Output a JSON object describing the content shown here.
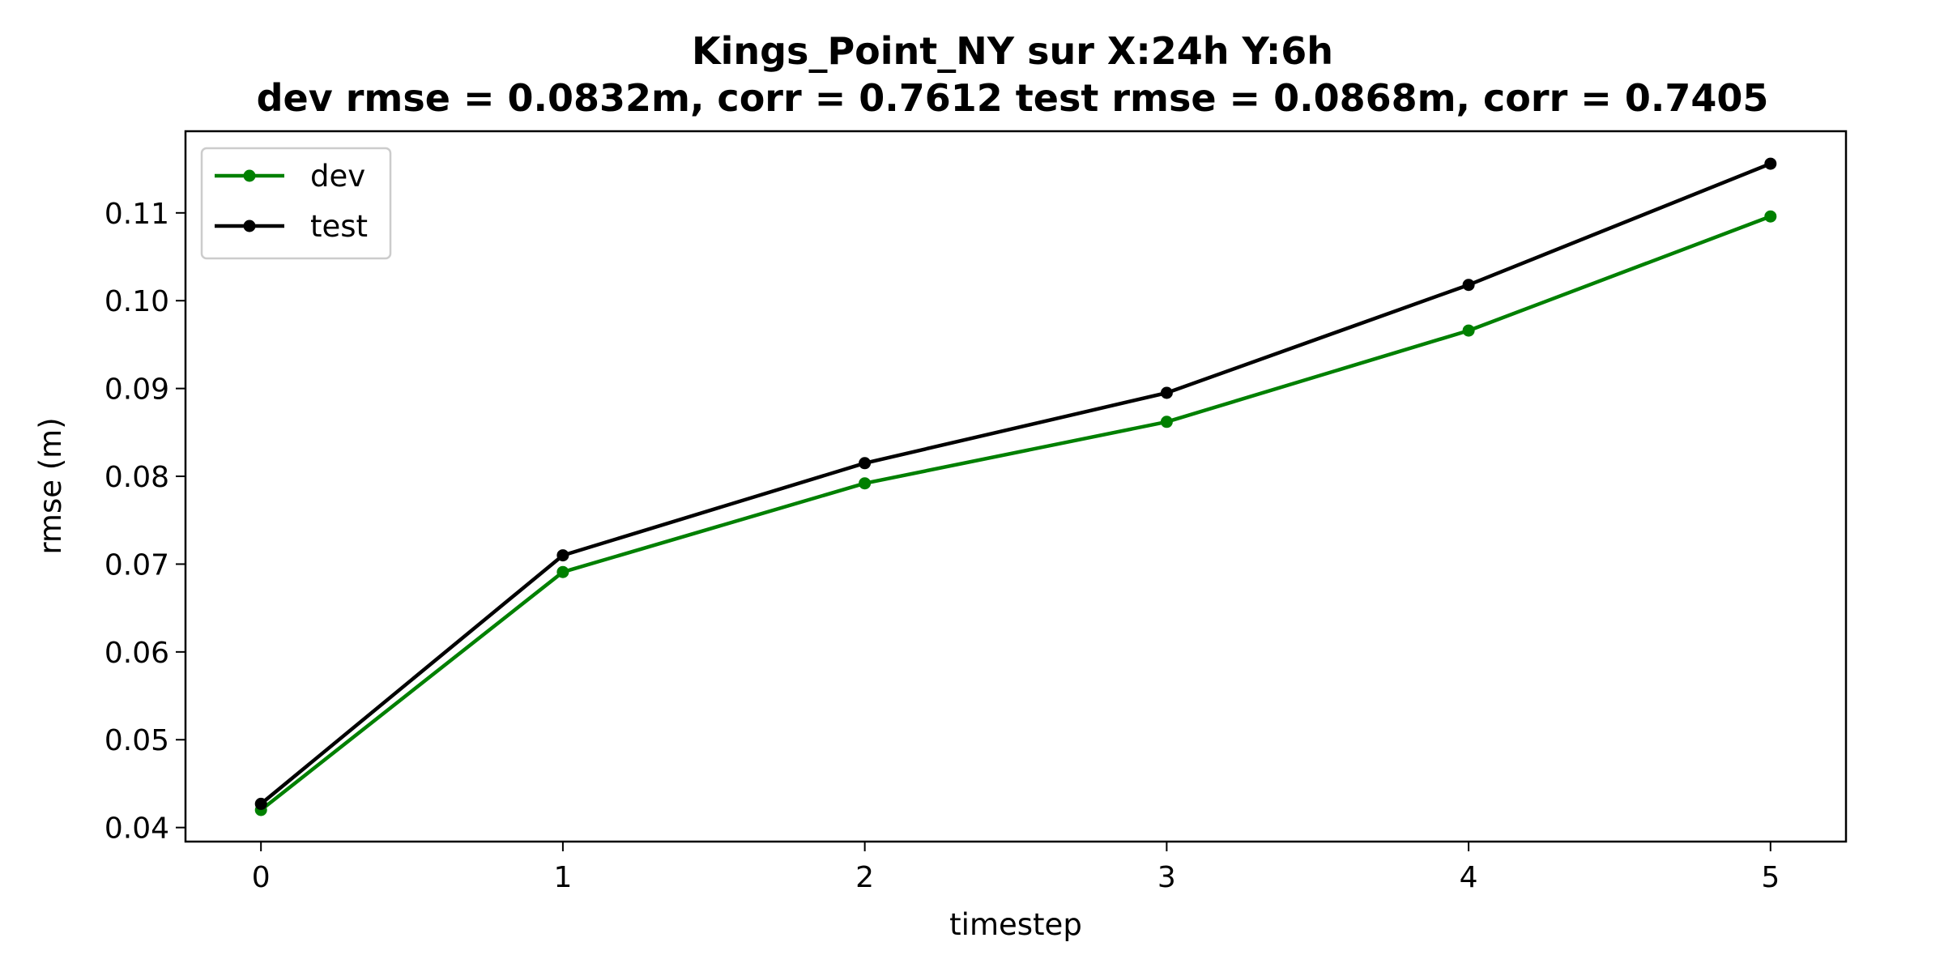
{
  "chart_data": {
    "type": "line",
    "title": "Kings_Point_NY   sur   X:24h   Y:6h",
    "subtitle": "dev rmse = 0.0832m, corr = 0.7612   test rmse = 0.0868m, corr = 0.7405",
    "xlabel": "timestep",
    "ylabel": "rmse (m)",
    "x": [
      0,
      1,
      2,
      3,
      4,
      5
    ],
    "xticks": [
      "0",
      "1",
      "2",
      "3",
      "4",
      "5"
    ],
    "yticks": [
      "0.04",
      "0.05",
      "0.06",
      "0.07",
      "0.08",
      "0.09",
      "0.10",
      "0.11"
    ],
    "xlim": [
      -0.25,
      5.25
    ],
    "ylim": [
      0.0384,
      0.1193
    ],
    "grid": false,
    "legend_position": "upper-left",
    "series": [
      {
        "name": "dev",
        "color": "#008000",
        "values": [
          0.042,
          0.0691,
          0.0792,
          0.0862,
          0.0966,
          0.1096
        ]
      },
      {
        "name": "test",
        "color": "#000000",
        "values": [
          0.0427,
          0.071,
          0.0815,
          0.0895,
          0.1018,
          0.1156
        ]
      }
    ]
  }
}
